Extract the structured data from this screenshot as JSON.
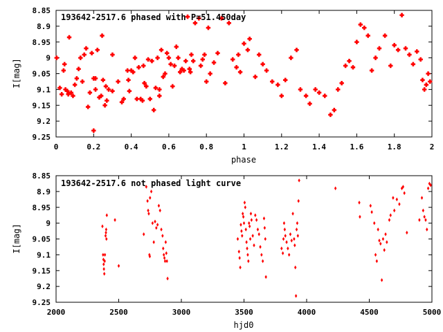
{
  "chart_data": [
    {
      "type": "scatter",
      "title": "193642-2517.6 phased with P=51.450day",
      "xlabel": "phase",
      "ylabel": "I[mag]",
      "xlim": [
        0,
        2
      ],
      "ylim": [
        8.85,
        9.25
      ],
      "y_inverted": true,
      "grid": false,
      "x_ticks": [
        0,
        0.2,
        0.4,
        0.6,
        0.8,
        1,
        1.2,
        1.4,
        1.6,
        1.8,
        2
      ],
      "x_tick_labels": [
        "0",
        "0.2",
        "0.4",
        "0.6",
        "0.8",
        "1",
        "1.2",
        "1.4",
        "1.6",
        "1.8",
        "2"
      ],
      "y_ticks": [
        8.85,
        8.9,
        8.95,
        9,
        9.05,
        9.1,
        9.15,
        9.2,
        9.25
      ],
      "y_tick_labels": [
        "8.85",
        "8.9",
        "8.95",
        "9",
        "9.05",
        "9.1",
        "9.15",
        "9.2",
        "9.25"
      ],
      "marker_color": "#ff0000",
      "points": [
        [
          0.003,
          9.0
        ],
        [
          0.02,
          9.095
        ],
        [
          0.03,
          9.115
        ],
        [
          0.04,
          9.04
        ],
        [
          0.045,
          9.02
        ],
        [
          0.05,
          9.1
        ],
        [
          0.06,
          9.105
        ],
        [
          0.065,
          9.115
        ],
        [
          0.07,
          8.935
        ],
        [
          0.08,
          9.11
        ],
        [
          0.09,
          9.12
        ],
        [
          0.1,
          9.085
        ],
        [
          0.11,
          9.065
        ],
        [
          0.12,
          9.035
        ],
        [
          0.13,
          9.0
        ],
        [
          0.14,
          9.075
        ],
        [
          0.15,
          8.99
        ],
        [
          0.16,
          8.97
        ],
        [
          0.17,
          9.155
        ],
        [
          0.18,
          9.11
        ],
        [
          0.19,
          8.985
        ],
        [
          0.2,
          9.065
        ],
        [
          0.2,
          9.23
        ],
        [
          0.21,
          9.1
        ],
        [
          0.21,
          9.065
        ],
        [
          0.22,
          8.975
        ],
        [
          0.23,
          9.125
        ],
        [
          0.24,
          9.12
        ],
        [
          0.245,
          8.93
        ],
        [
          0.25,
          9.07
        ],
        [
          0.26,
          9.15
        ],
        [
          0.265,
          9.09
        ],
        [
          0.27,
          9.135
        ],
        [
          0.28,
          9.1
        ],
        [
          0.3,
          9.105
        ],
        [
          0.3,
          8.99
        ],
        [
          0.33,
          9.075
        ],
        [
          0.35,
          9.14
        ],
        [
          0.36,
          9.13
        ],
        [
          0.38,
          9.04
        ],
        [
          0.385,
          9.07
        ],
        [
          0.39,
          9.105
        ],
        [
          0.4,
          9.04
        ],
        [
          0.41,
          9.045
        ],
        [
          0.42,
          9.0
        ],
        [
          0.43,
          9.13
        ],
        [
          0.44,
          9.03
        ],
        [
          0.45,
          9.13
        ],
        [
          0.46,
          9.135
        ],
        [
          0.465,
          9.025
        ],
        [
          0.47,
          9.08
        ],
        [
          0.48,
          9.09
        ],
        [
          0.49,
          9.005
        ],
        [
          0.5,
          9.13
        ],
        [
          0.51,
          9.01
        ],
        [
          0.52,
          9.165
        ],
        [
          0.53,
          9.095
        ],
        [
          0.54,
          9.0
        ],
        [
          0.55,
          9.12
        ],
        [
          0.55,
          9.1
        ],
        [
          0.56,
          8.975
        ],
        [
          0.57,
          9.06
        ],
        [
          0.58,
          9.05
        ],
        [
          0.59,
          8.985
        ],
        [
          0.6,
          9.0
        ],
        [
          0.61,
          9.02
        ],
        [
          0.62,
          9.09
        ],
        [
          0.63,
          9.025
        ],
        [
          0.64,
          8.965
        ],
        [
          0.65,
          9.0
        ],
        [
          0.66,
          9.045
        ],
        [
          0.67,
          9.035
        ],
        [
          0.68,
          9.04
        ],
        [
          0.69,
          9.01
        ],
        [
          0.7,
          8.87
        ],
        [
          0.71,
          9.035
        ],
        [
          0.715,
          9.045
        ],
        [
          0.72,
          8.99
        ],
        [
          0.73,
          9.01
        ],
        [
          0.74,
          8.89
        ],
        [
          0.76,
          8.875
        ],
        [
          0.77,
          9.025
        ],
        [
          0.78,
          9.005
        ],
        [
          0.79,
          8.99
        ],
        [
          0.8,
          9.075
        ],
        [
          0.81,
          8.905
        ],
        [
          0.82,
          9.05
        ],
        [
          0.84,
          9.015
        ],
        [
          0.86,
          8.985
        ],
        [
          0.88,
          8.875
        ],
        [
          0.9,
          9.08
        ],
        [
          0.92,
          8.89
        ],
        [
          0.94,
          9.005
        ],
        [
          0.96,
          9.03
        ],
        [
          0.97,
          8.99
        ],
        [
          0.98,
          9.045
        ],
        [
          1.0,
          8.955
        ],
        [
          1.02,
          8.975
        ],
        [
          1.03,
          8.94
        ],
        [
          1.06,
          9.06
        ],
        [
          1.08,
          8.99
        ],
        [
          1.1,
          9.02
        ],
        [
          1.12,
          9.04
        ],
        [
          1.15,
          9.075
        ],
        [
          1.18,
          9.085
        ],
        [
          1.2,
          9.12
        ],
        [
          1.22,
          9.07
        ],
        [
          1.25,
          9.0
        ],
        [
          1.28,
          8.975
        ],
        [
          1.3,
          9.1
        ],
        [
          1.33,
          9.12
        ],
        [
          1.35,
          9.145
        ],
        [
          1.38,
          9.1
        ],
        [
          1.4,
          9.11
        ],
        [
          1.43,
          9.12
        ],
        [
          1.46,
          9.18
        ],
        [
          1.48,
          9.165
        ],
        [
          1.5,
          9.1
        ],
        [
          1.52,
          9.08
        ],
        [
          1.54,
          9.025
        ],
        [
          1.56,
          9.01
        ],
        [
          1.58,
          9.03
        ],
        [
          1.6,
          8.95
        ],
        [
          1.62,
          8.895
        ],
        [
          1.64,
          8.905
        ],
        [
          1.66,
          8.93
        ],
        [
          1.68,
          9.04
        ],
        [
          1.7,
          9.0
        ],
        [
          1.72,
          8.97
        ],
        [
          1.75,
          8.93
        ],
        [
          1.78,
          9.025
        ],
        [
          1.8,
          8.96
        ],
        [
          1.82,
          8.975
        ],
        [
          1.84,
          8.865
        ],
        [
          1.86,
          8.97
        ],
        [
          1.88,
          8.99
        ],
        [
          1.9,
          9.02
        ],
        [
          1.92,
          8.98
        ],
        [
          1.94,
          9.005
        ],
        [
          1.95,
          9.07
        ],
        [
          1.96,
          9.1
        ],
        [
          1.97,
          9.085
        ],
        [
          1.98,
          9.05
        ],
        [
          1.99,
          9.075
        ]
      ]
    },
    {
      "type": "scatter",
      "title": "193642-2517.6 not phased light curve",
      "xlabel": "hjd0",
      "ylabel": "I[mag]",
      "xlim": [
        2000,
        5000
      ],
      "ylim": [
        8.85,
        9.25
      ],
      "y_inverted": true,
      "grid": false,
      "x_ticks": [
        2000,
        2500,
        3000,
        3500,
        4000,
        4500,
        5000
      ],
      "x_tick_labels": [
        "2000",
        "2500",
        "3000",
        "3500",
        "4000",
        "4500",
        "5000"
      ],
      "y_ticks": [
        8.85,
        8.9,
        8.95,
        9,
        9.05,
        9.1,
        9.15,
        9.2,
        9.25
      ],
      "y_tick_labels": [
        "8.85",
        "8.9",
        "8.95",
        "9",
        "9.05",
        "9.1",
        "9.15",
        "9.2",
        "9.25"
      ],
      "marker_color": "#ff0000",
      "points": [
        [
          2370,
          9.01
        ],
        [
          2375,
          9.1
        ],
        [
          2378,
          9.115
        ],
        [
          2380,
          9.13
        ],
        [
          2382,
          9.145
        ],
        [
          2385,
          9.16
        ],
        [
          2388,
          9.12
        ],
        [
          2390,
          9.1
        ],
        [
          2395,
          9.04
        ],
        [
          2398,
          9.03
        ],
        [
          2400,
          9.02
        ],
        [
          2402,
          9.05
        ],
        [
          2405,
          8.975
        ],
        [
          2470,
          8.99
        ],
        [
          2500,
          9.135
        ],
        [
          2700,
          9.035
        ],
        [
          2720,
          8.885
        ],
        [
          2730,
          8.93
        ],
        [
          2735,
          8.96
        ],
        [
          2740,
          8.97
        ],
        [
          2745,
          9.1
        ],
        [
          2748,
          9.105
        ],
        [
          2750,
          8.92
        ],
        [
          2760,
          8.9
        ],
        [
          2770,
          9.0
        ],
        [
          2780,
          9.06
        ],
        [
          2790,
          8.995
        ],
        [
          2800,
          9.015
        ],
        [
          2810,
          9.005
        ],
        [
          2820,
          8.945
        ],
        [
          2830,
          8.96
        ],
        [
          2840,
          9.02
        ],
        [
          2850,
          9.04
        ],
        [
          2855,
          9.08
        ],
        [
          2860,
          9.1
        ],
        [
          2865,
          9.11
        ],
        [
          2870,
          9.12
        ],
        [
          2875,
          9.06
        ],
        [
          2880,
          9.095
        ],
        [
          2885,
          9.12
        ],
        [
          2890,
          9.175
        ],
        [
          3450,
          9.05
        ],
        [
          3460,
          9.09
        ],
        [
          3465,
          9.11
        ],
        [
          3470,
          9.14
        ],
        [
          3475,
          9.005
        ],
        [
          3480,
          9.025
        ],
        [
          3485,
          9.04
        ],
        [
          3490,
          8.97
        ],
        [
          3495,
          8.98
        ],
        [
          3500,
          9.0
        ],
        [
          3505,
          8.935
        ],
        [
          3510,
          8.95
        ],
        [
          3515,
          9.02
        ],
        [
          3520,
          9.06
        ],
        [
          3525,
          9.08
        ],
        [
          3530,
          9.1
        ],
        [
          3535,
          9.12
        ],
        [
          3540,
          9.0
        ],
        [
          3545,
          9.01
        ],
        [
          3550,
          9.05
        ],
        [
          3555,
          8.97
        ],
        [
          3560,
          8.99
        ],
        [
          3570,
          9.04
        ],
        [
          3580,
          9.07
        ],
        [
          3590,
          8.975
        ],
        [
          3600,
          8.99
        ],
        [
          3610,
          9.02
        ],
        [
          3620,
          9.035
        ],
        [
          3630,
          9.075
        ],
        [
          3640,
          9.1
        ],
        [
          3650,
          9.12
        ],
        [
          3660,
          8.985
        ],
        [
          3665,
          9.015
        ],
        [
          3670,
          9.05
        ],
        [
          3675,
          9.17
        ],
        [
          3800,
          9.08
        ],
        [
          3810,
          9.095
        ],
        [
          3815,
          9.05
        ],
        [
          3820,
          9.0
        ],
        [
          3825,
          9.02
        ],
        [
          3830,
          9.04
        ],
        [
          3840,
          9.06
        ],
        [
          3850,
          9.08
        ],
        [
          3860,
          9.1
        ],
        [
          3870,
          9.035
        ],
        [
          3880,
          9.055
        ],
        [
          3890,
          8.97
        ],
        [
          3900,
          9.05
        ],
        [
          3905,
          9.07
        ],
        [
          3910,
          9.14
        ],
        [
          3915,
          9.23
        ],
        [
          3920,
          9.02
        ],
        [
          3925,
          9.0
        ],
        [
          3930,
          9.04
        ],
        [
          3935,
          8.93
        ],
        [
          3940,
          8.865
        ],
        [
          4230,
          8.89
        ],
        [
          4420,
          8.935
        ],
        [
          4425,
          8.98
        ],
        [
          4510,
          8.945
        ],
        [
          4520,
          8.965
        ],
        [
          4540,
          9.0
        ],
        [
          4550,
          9.1
        ],
        [
          4560,
          9.12
        ],
        [
          4570,
          9.02
        ],
        [
          4580,
          9.055
        ],
        [
          4590,
          9.065
        ],
        [
          4600,
          9.18
        ],
        [
          4610,
          9.05
        ],
        [
          4620,
          9.085
        ],
        [
          4630,
          9.035
        ],
        [
          4640,
          9.06
        ],
        [
          4660,
          8.99
        ],
        [
          4670,
          8.975
        ],
        [
          4690,
          8.92
        ],
        [
          4700,
          8.96
        ],
        [
          4720,
          8.925
        ],
        [
          4740,
          8.94
        ],
        [
          4760,
          8.89
        ],
        [
          4770,
          8.885
        ],
        [
          4780,
          8.905
        ],
        [
          4800,
          9.03
        ],
        [
          4900,
          8.99
        ],
        [
          4920,
          8.92
        ],
        [
          4930,
          8.96
        ],
        [
          4940,
          8.98
        ],
        [
          4950,
          8.99
        ],
        [
          4960,
          9.02
        ],
        [
          4970,
          8.89
        ],
        [
          4980,
          8.875
        ],
        [
          4990,
          8.88
        ]
      ]
    }
  ]
}
